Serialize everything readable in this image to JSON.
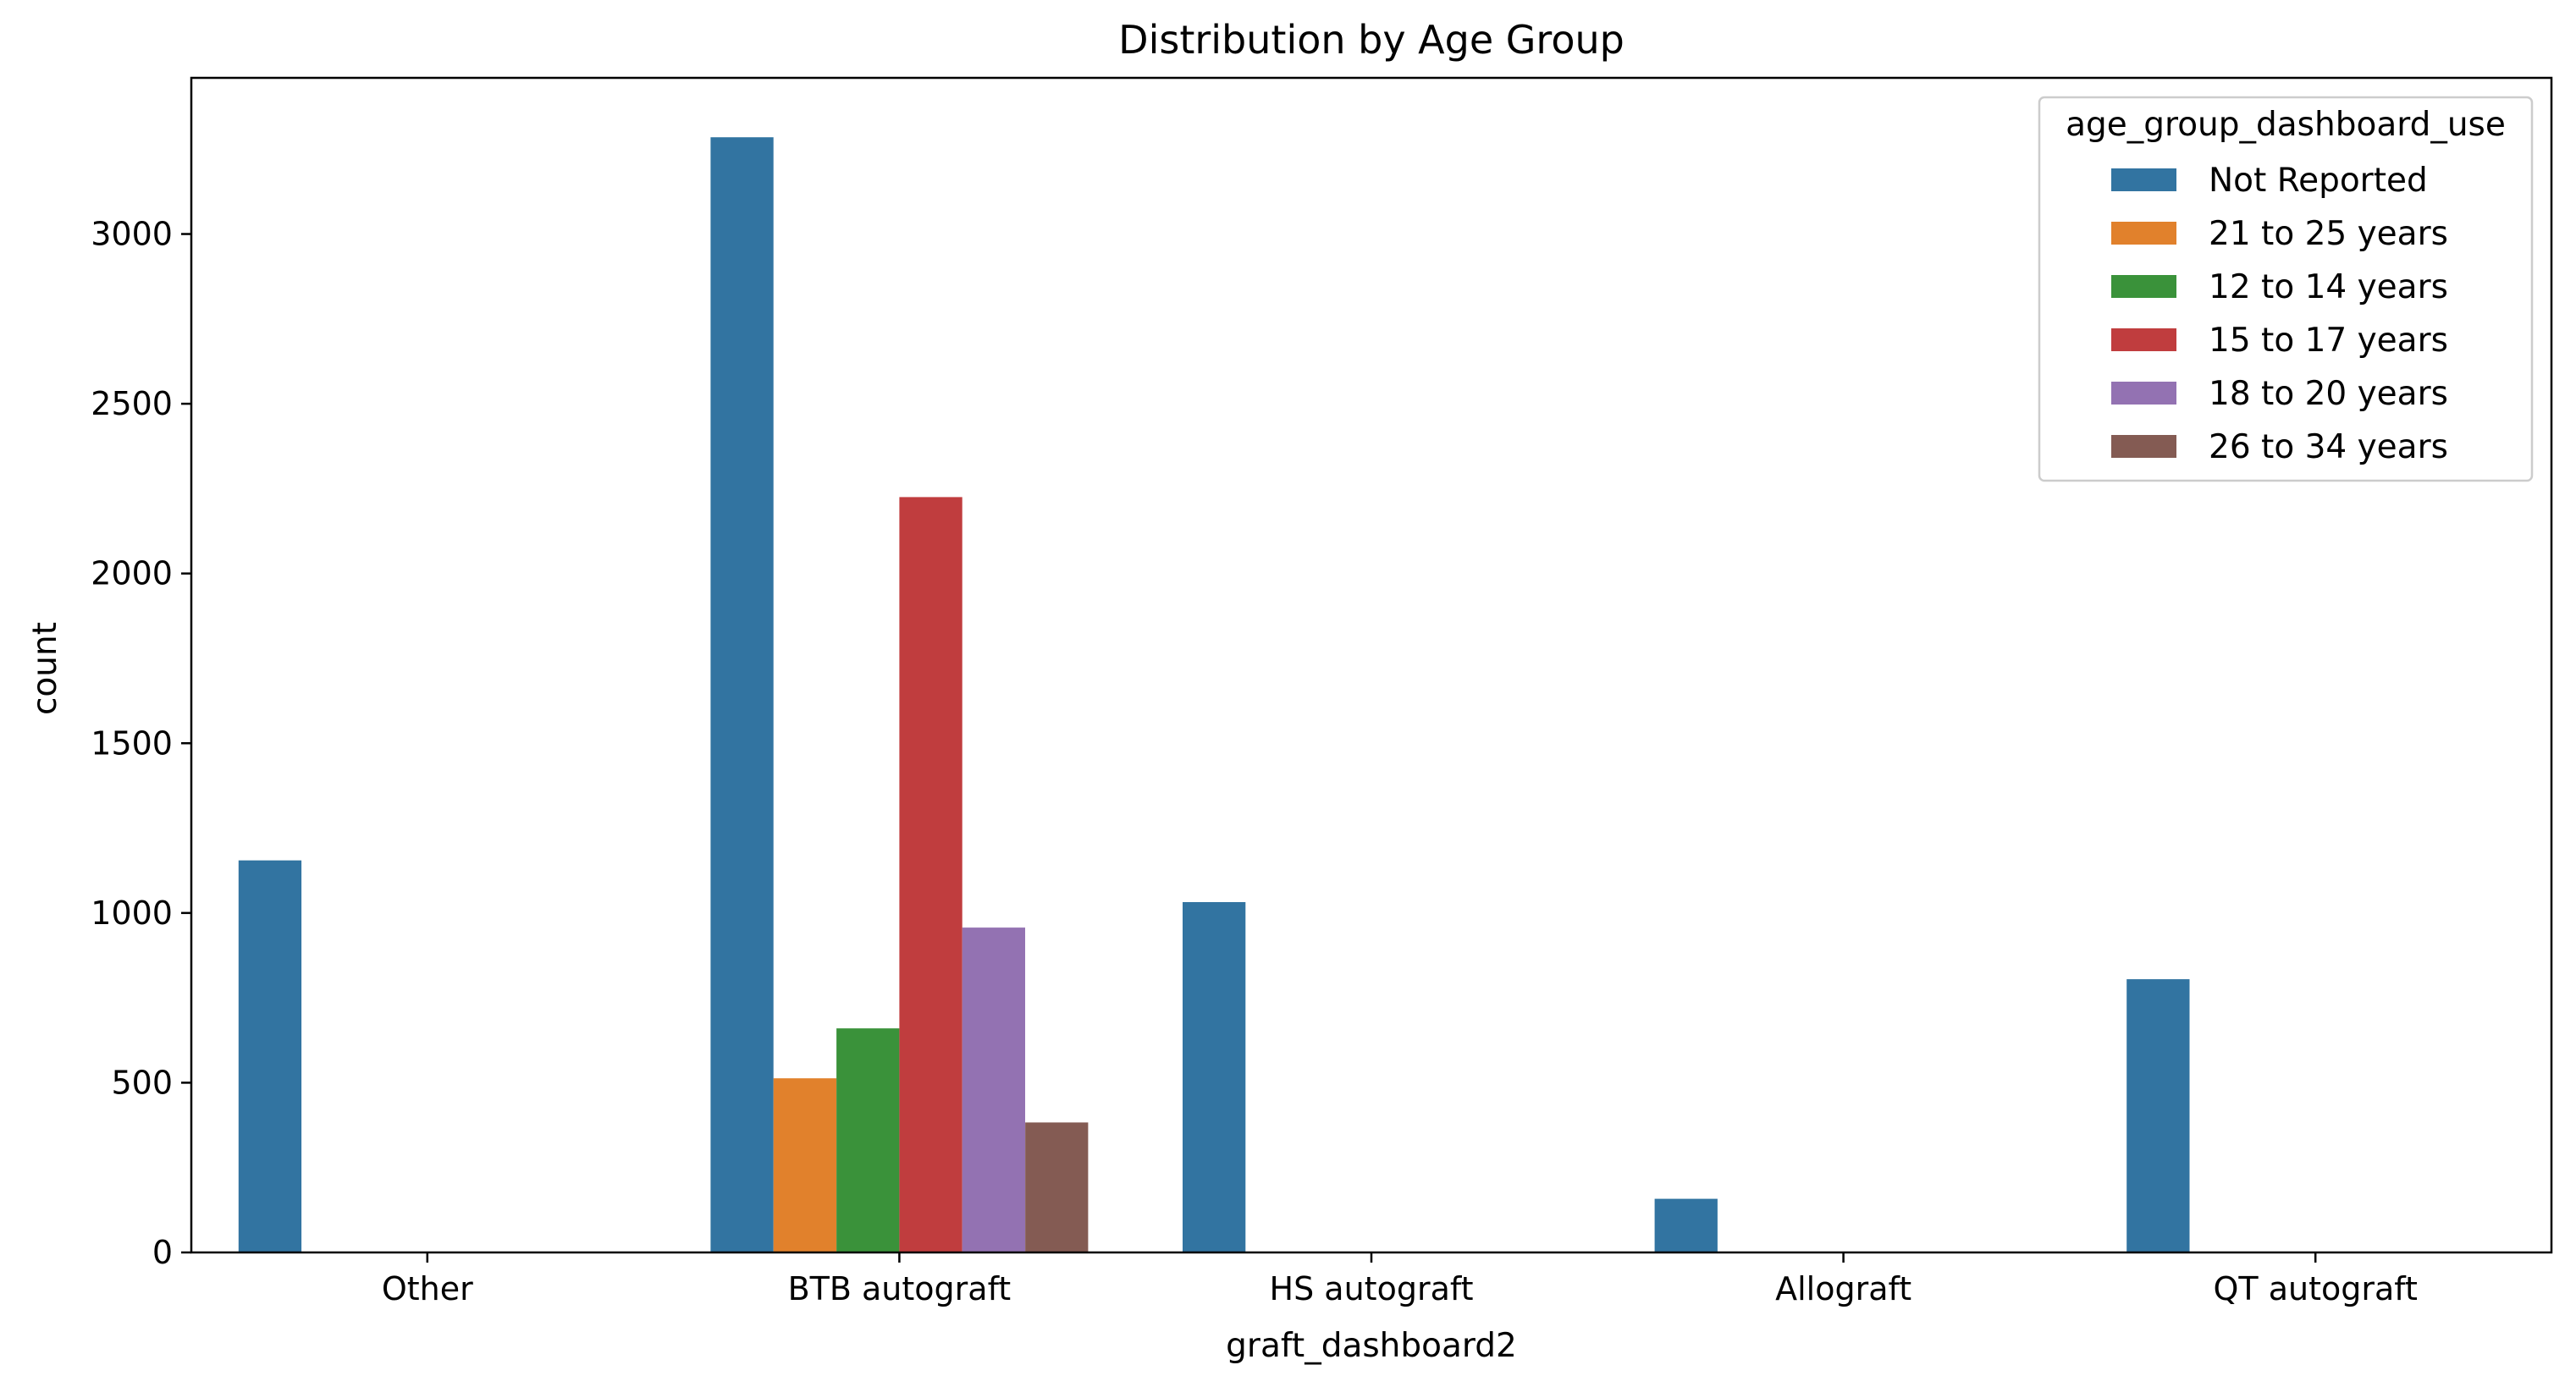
{
  "chart_data": {
    "type": "bar",
    "title": "Distribution by Age Group",
    "xlabel": "graft_dashboard2",
    "ylabel": "count",
    "categories": [
      "Other",
      "BTB autograft",
      "HS autograft",
      "Allograft",
      "QT autograft"
    ],
    "ylim": [
      0,
      3460
    ],
    "yticks": [
      0,
      500,
      1000,
      1500,
      2000,
      2500,
      3000
    ],
    "grid": false,
    "legend": {
      "title": "age_group_dashboard_use",
      "placement": "top-right"
    },
    "series": [
      {
        "name": "Not Reported",
        "color": "#3274a1",
        "values": [
          1155,
          3285,
          1032,
          158,
          805
        ]
      },
      {
        "name": "21 to 25 years",
        "color": "#e1812c",
        "values": [
          0,
          513,
          0,
          0,
          0
        ]
      },
      {
        "name": "12 to 14 years",
        "color": "#3a923a",
        "values": [
          0,
          660,
          0,
          0,
          0
        ]
      },
      {
        "name": "15 to 17 years",
        "color": "#c03d3e",
        "values": [
          0,
          2225,
          0,
          0,
          0
        ]
      },
      {
        "name": "18 to 20 years",
        "color": "#9372b2",
        "values": [
          0,
          957,
          0,
          0,
          0
        ]
      },
      {
        "name": "26 to 34 years",
        "color": "#845b53",
        "values": [
          0,
          383,
          0,
          0,
          0
        ]
      }
    ]
  }
}
